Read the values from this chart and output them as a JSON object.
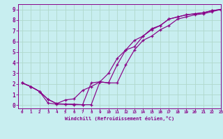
{
  "background_color": "#c8eef0",
  "grid_color": "#b0d8cc",
  "line_color": "#880088",
  "marker": "+",
  "xlim": [
    -0.5,
    23
  ],
  "ylim": [
    -0.3,
    9.5
  ],
  "xlabel": "Windchill (Refroidissement éolien,°C)",
  "xticks": [
    0,
    1,
    2,
    3,
    4,
    5,
    6,
    7,
    8,
    9,
    10,
    11,
    12,
    13,
    14,
    15,
    16,
    17,
    18,
    19,
    20,
    21,
    22,
    23
  ],
  "yticks": [
    0,
    1,
    2,
    3,
    4,
    5,
    6,
    7,
    8,
    9
  ],
  "line1_x": [
    0,
    1,
    2,
    3,
    4,
    5,
    6,
    7,
    8,
    9,
    10,
    11,
    12,
    13,
    14,
    15,
    16,
    17,
    18,
    19,
    20,
    21,
    22,
    23
  ],
  "line1_y": [
    2.1,
    1.75,
    1.3,
    0.55,
    0.15,
    0.1,
    0.05,
    0.05,
    2.1,
    2.2,
    2.1,
    3.8,
    5.2,
    6.1,
    6.5,
    7.1,
    7.5,
    8.1,
    8.3,
    8.5,
    8.6,
    8.7,
    8.9,
    9.0
  ],
  "line2_x": [
    0,
    1,
    2,
    3,
    4,
    5,
    6,
    7,
    8,
    9,
    10,
    11,
    12,
    13,
    14,
    15,
    16,
    17,
    18,
    19,
    20,
    21,
    22,
    23
  ],
  "line2_y": [
    2.1,
    1.75,
    1.3,
    0.55,
    0.15,
    0.5,
    0.6,
    1.4,
    1.75,
    2.2,
    3.0,
    4.4,
    5.2,
    5.5,
    6.5,
    7.2,
    7.5,
    8.1,
    8.3,
    8.5,
    8.6,
    8.7,
    8.9,
    9.0
  ],
  "line3_x": [
    0,
    1,
    2,
    3,
    4,
    5,
    6,
    7,
    8,
    9,
    10,
    11,
    12,
    13,
    14,
    15,
    16,
    17,
    18,
    19,
    20,
    21,
    22,
    23
  ],
  "line3_y": [
    2.1,
    1.75,
    1.3,
    0.2,
    0.1,
    0.1,
    0.1,
    0.05,
    0.05,
    2.2,
    2.1,
    2.1,
    3.8,
    5.2,
    6.1,
    6.5,
    7.1,
    7.5,
    8.1,
    8.3,
    8.5,
    8.6,
    8.8,
    9.0
  ]
}
